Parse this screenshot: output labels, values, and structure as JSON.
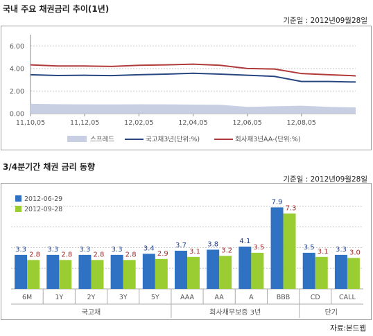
{
  "chart1": {
    "title": "국내 주요 채권금리 추이(1년)",
    "date_label": "기준일 : 2012년09월28일",
    "yticks": [
      "0.00",
      "2.00",
      "4.00",
      "6.00"
    ],
    "xticks": [
      "11,10,05",
      "11,12,05",
      "12,02,05",
      "12,04,05",
      "12,06,05",
      "12,08,05"
    ],
    "legend": [
      "스프레드",
      "국고채3년(단위:%)",
      "회사채3년AA-(단위:%)"
    ],
    "colors": {
      "spread": "#c9cfe3",
      "gov": "#27467f",
      "corp": "#b03a3a"
    }
  },
  "chart2": {
    "title": "3/4분기간 채권 금리 동향",
    "date_label": "기준일 : 2012년09월28일",
    "legend": [
      "2012-06-29",
      "2012-09-28"
    ],
    "groups": [
      {
        "label": "국고채",
        "span": 5
      },
      {
        "label": "회사채무보증 3년",
        "span": 4
      },
      {
        "label": "단기",
        "span": 2
      }
    ],
    "colors": {
      "s1": "#2f72c4",
      "s2": "#9acd32",
      "label1": "#1f3f8f",
      "label2": "#a52a2a"
    }
  },
  "source": "자료:본드웹",
  "chart_data": [
    {
      "type": "line",
      "title": "국내 주요 채권금리 추이(1년)",
      "x": [
        "11,10,05",
        "11,11,05",
        "11,12,05",
        "12,01,05",
        "12,02,05",
        "12,03,05",
        "12,04,05",
        "12,05,05",
        "12,06,05",
        "12,07,05",
        "12,08,05",
        "12,09,05",
        "12,09,28"
      ],
      "ylim": [
        0,
        7
      ],
      "series": [
        {
          "name": "국고채3년(단위:%)",
          "kind": "line",
          "values": [
            3.45,
            3.38,
            3.4,
            3.37,
            3.45,
            3.5,
            3.58,
            3.5,
            3.4,
            3.3,
            2.85,
            2.85,
            2.8
          ]
        },
        {
          "name": "회사채3년AA-(단위:%)",
          "kind": "line",
          "values": [
            4.32,
            4.22,
            4.22,
            4.18,
            4.28,
            4.32,
            4.38,
            4.28,
            4.0,
            3.95,
            3.55,
            3.45,
            3.35
          ]
        },
        {
          "name": "스프레드",
          "kind": "area",
          "values": [
            0.87,
            0.84,
            0.82,
            0.81,
            0.83,
            0.82,
            0.8,
            0.78,
            0.6,
            0.65,
            0.7,
            0.6,
            0.55
          ]
        }
      ]
    },
    {
      "type": "bar",
      "title": "3/4분기간 채권 금리 동향",
      "categories": [
        "6M",
        "1Y",
        "2Y",
        "3Y",
        "5Y",
        "AAA",
        "AA",
        "A",
        "BBB",
        "CD",
        "CALL"
      ],
      "series": [
        {
          "name": "2012-06-29",
          "values": [
            3.3,
            3.3,
            3.3,
            3.3,
            3.4,
            3.7,
            3.8,
            4.1,
            7.9,
            3.5,
            3.3
          ]
        },
        {
          "name": "2012-09-28",
          "values": [
            2.8,
            2.8,
            2.8,
            2.8,
            2.9,
            3.1,
            3.2,
            3.5,
            7.3,
            3.1,
            3.0
          ]
        }
      ]
    }
  ]
}
